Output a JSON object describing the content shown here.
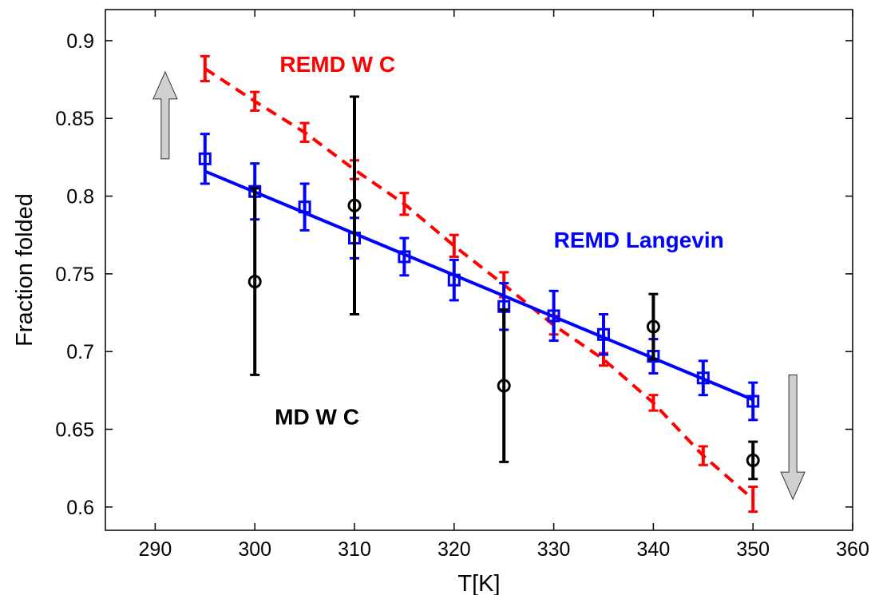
{
  "chart_data": {
    "type": "line",
    "xlabel": "T[K]",
    "ylabel": "Fraction folded",
    "xlim": [
      285,
      360
    ],
    "ylim": [
      0.585,
      0.92
    ],
    "xticks": [
      290,
      300,
      310,
      320,
      330,
      340,
      350,
      360
    ],
    "yticks": [
      0.6,
      0.65,
      0.7,
      0.75,
      0.8,
      0.85,
      0.9
    ],
    "grid": false,
    "series": [
      {
        "name": "REMD W C",
        "color": "#ff0000",
        "line": "dashed",
        "marker": "none",
        "points": [
          {
            "x": 295,
            "y": 0.882,
            "err": 0.008
          },
          {
            "x": 300,
            "y": 0.861,
            "err": 0.006
          },
          {
            "x": 305,
            "y": 0.841,
            "err": 0.006
          },
          {
            "x": 310,
            "y": 0.817,
            "err": 0.006
          },
          {
            "x": 315,
            "y": 0.795,
            "err": 0.007
          },
          {
            "x": 320,
            "y": 0.768,
            "err": 0.007
          },
          {
            "x": 325,
            "y": 0.743,
            "err": 0.008
          },
          {
            "x": 330,
            "y": 0.717,
            "err": 0.006
          },
          {
            "x": 335,
            "y": 0.695,
            "err": 0.004
          },
          {
            "x": 340,
            "y": 0.667,
            "err": 0.005
          },
          {
            "x": 345,
            "y": 0.633,
            "err": 0.006
          },
          {
            "x": 350,
            "y": 0.605,
            "err": 0.008
          }
        ]
      },
      {
        "name": "REMD Langevin",
        "color": "#0000ff",
        "line": "solid",
        "marker": "square",
        "fit": [
          [
            295,
            0.816
          ],
          [
            350,
            0.669
          ]
        ],
        "points": [
          {
            "x": 295,
            "y": 0.824,
            "err": 0.016
          },
          {
            "x": 300,
            "y": 0.803,
            "err": 0.018
          },
          {
            "x": 305,
            "y": 0.793,
            "err": 0.015
          },
          {
            "x": 310,
            "y": 0.773,
            "err": 0.013
          },
          {
            "x": 315,
            "y": 0.761,
            "err": 0.012
          },
          {
            "x": 320,
            "y": 0.746,
            "err": 0.013
          },
          {
            "x": 325,
            "y": 0.729,
            "err": 0.015
          },
          {
            "x": 330,
            "y": 0.723,
            "err": 0.016
          },
          {
            "x": 335,
            "y": 0.711,
            "err": 0.013
          },
          {
            "x": 340,
            "y": 0.697,
            "err": 0.011
          },
          {
            "x": 345,
            "y": 0.683,
            "err": 0.011
          },
          {
            "x": 350,
            "y": 0.668,
            "err": 0.012
          }
        ]
      },
      {
        "name": "MD W C",
        "color": "#000000",
        "line": "none",
        "marker": "circle",
        "points": [
          {
            "x": 300,
            "y": 0.745,
            "err": 0.06
          },
          {
            "x": 310,
            "y": 0.794,
            "err": 0.07
          },
          {
            "x": 325,
            "y": 0.678,
            "err": 0.049
          },
          {
            "x": 340,
            "y": 0.716,
            "err": 0.021
          },
          {
            "x": 350,
            "y": 0.63,
            "err": 0.012
          }
        ]
      }
    ],
    "annotations": [
      {
        "id": "remd-wc",
        "text": "REMD W C",
        "color": "#ff0000",
        "x": 302.5,
        "y": 0.88
      },
      {
        "id": "remd-langevin",
        "text": "REMD Langevin",
        "color": "#0000ff",
        "x": 330,
        "y": 0.767
      },
      {
        "id": "md-wc",
        "text": "MD W C",
        "color": "#000000",
        "x": 302,
        "y": 0.653
      }
    ],
    "arrows": [
      {
        "id": "up",
        "direction": "up",
        "x": 291,
        "y_from": 0.824,
        "y_to": 0.88,
        "color": "#d0d0d0"
      },
      {
        "id": "down",
        "direction": "down",
        "x": 354,
        "y_from": 0.685,
        "y_to": 0.605,
        "color": "#d0d0d0"
      }
    ]
  }
}
